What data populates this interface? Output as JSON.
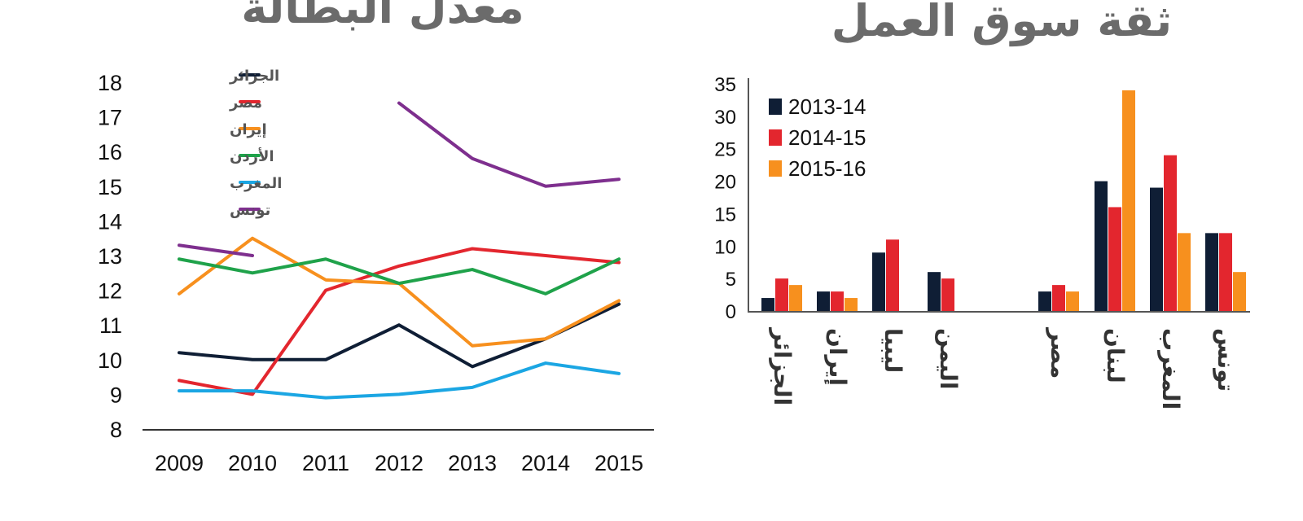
{
  "chart_data": [
    {
      "type": "line",
      "title": "معدل البطالة",
      "x": [
        2009,
        2010,
        2011,
        2012,
        2013,
        2014,
        2015
      ],
      "ylim": [
        8,
        18
      ],
      "yticks": [
        8,
        9,
        10,
        11,
        12,
        13,
        14,
        15,
        16,
        17,
        18
      ],
      "grid": false,
      "legend_position": "top-left",
      "series": [
        {
          "name": "الجزائر",
          "color": "#0f1e35",
          "values": [
            10.2,
            10.0,
            10.0,
            11.0,
            9.8,
            10.6,
            11.6
          ]
        },
        {
          "name": "مصر",
          "color": "#e3262e",
          "values": [
            9.4,
            9.0,
            12.0,
            12.7,
            13.2,
            13.0,
            12.8
          ]
        },
        {
          "name": "إيران",
          "color": "#f7901e",
          "values": [
            11.9,
            13.5,
            12.3,
            12.2,
            10.4,
            10.6,
            11.7
          ]
        },
        {
          "name": "الأردن",
          "color": "#1fa24a",
          "values": [
            12.9,
            12.5,
            12.9,
            12.2,
            12.6,
            11.9,
            12.9
          ]
        },
        {
          "name": "المغرب",
          "color": "#1ba6e3",
          "values": [
            9.1,
            9.1,
            8.9,
            9.0,
            9.2,
            9.9,
            9.6
          ]
        },
        {
          "name": "تونس",
          "color": "#7e2f8e",
          "values": [
            13.3,
            13.0,
            null,
            17.4,
            15.8,
            15.0,
            15.2
          ]
        }
      ]
    },
    {
      "type": "bar",
      "title": "ثقة سوق العمل",
      "categories": [
        "الجزائر",
        "إيران",
        "ليبيا",
        "اليمن",
        "",
        "مصر",
        "لبنان",
        "المغرب",
        "تونس"
      ],
      "ylim": [
        0,
        35
      ],
      "yticks": [
        0,
        5,
        10,
        15,
        20,
        25,
        30,
        35
      ],
      "grid": false,
      "legend_position": "top-left",
      "series": [
        {
          "name": "2013-14",
          "color": "#0f1e35",
          "values": [
            2,
            3,
            9,
            6,
            null,
            3,
            20,
            19,
            12
          ]
        },
        {
          "name": "2014-15",
          "color": "#e3262e",
          "values": [
            5,
            3,
            11,
            5,
            null,
            4,
            16,
            24,
            12
          ]
        },
        {
          "name": "2015-16",
          "color": "#f7901e",
          "values": [
            4,
            2,
            null,
            null,
            null,
            3,
            34,
            12,
            6
          ]
        }
      ]
    }
  ]
}
